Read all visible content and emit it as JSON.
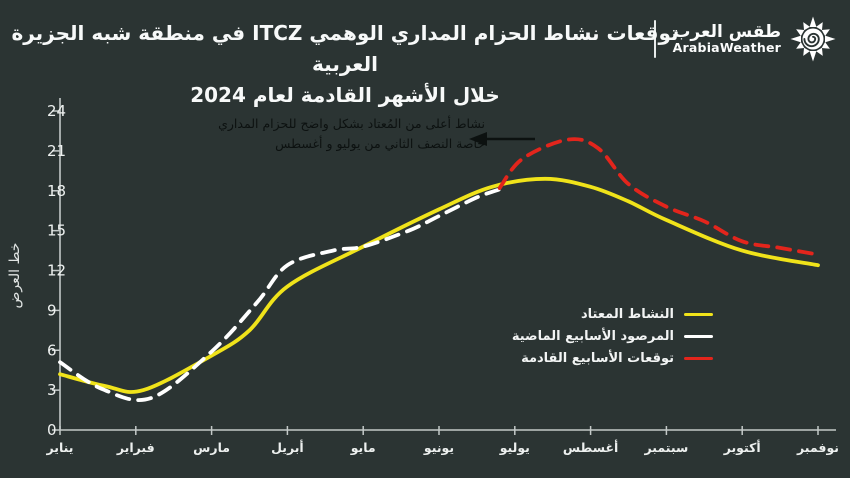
{
  "header": {
    "title_line1": "توقعات نشاط الحزام المداري الوهمي ITCZ في منطقة شبه الجزيرة العربية",
    "title_line2": "خلال الأشهر القادمة لعام 2024",
    "brand": {
      "name_ar": "طقس العرب",
      "name_en": "ArabiaWeather",
      "icon": "sun-spiral-icon"
    }
  },
  "annotation": {
    "line1": "نشاط أعلى من المُعتاد بشكل واضح للحزام المداري",
    "line2": "خاصة النصف الثاني من يوليو و أغسطس",
    "arrow": "black-left-arrow"
  },
  "chart_data": {
    "type": "line",
    "title": "",
    "xlabel": "",
    "ylabel": "خط العرض",
    "ylim": [
      0,
      24
    ],
    "yticks": [
      0,
      3,
      6,
      9,
      12,
      15,
      18,
      21,
      24
    ],
    "categories": [
      "يناير",
      "فبراير",
      "مارس",
      "أبريل",
      "مايو",
      "يونيو",
      "يوليو",
      "أغسطس",
      "سبتمبر",
      "أكتوبر",
      "نوفمبر"
    ],
    "grid": false,
    "legend_position": "middle-right",
    "series": [
      {
        "name": "النشاط المعتاد",
        "color": "#f0e31a",
        "style": "solid",
        "points": [
          [
            0,
            4.2
          ],
          [
            0.6,
            3.3
          ],
          [
            1.1,
            3.0
          ],
          [
            2,
            5.6
          ],
          [
            2.5,
            7.5
          ],
          [
            3,
            10.8
          ],
          [
            4,
            13.8
          ],
          [
            5,
            16.6
          ],
          [
            5.7,
            18.3
          ],
          [
            6.4,
            18.9
          ],
          [
            7,
            18.3
          ],
          [
            7.5,
            17.2
          ],
          [
            8,
            15.8
          ],
          [
            9,
            13.5
          ],
          [
            10,
            12.4
          ]
        ]
      },
      {
        "name": "المرصود الأسابيع الماضية",
        "color": "#ffffff",
        "style": "dashed",
        "points": [
          [
            0,
            5.1
          ],
          [
            0.55,
            3.1
          ],
          [
            1.2,
            2.4
          ],
          [
            2,
            5.9
          ],
          [
            2.6,
            9.6
          ],
          [
            3,
            12.4
          ],
          [
            3.6,
            13.5
          ],
          [
            4,
            13.8
          ],
          [
            4.6,
            15.0
          ],
          [
            5,
            16.1
          ],
          [
            5.5,
            17.5
          ],
          [
            5.85,
            18.2
          ]
        ]
      },
      {
        "name": "توقعات الأسابيع القادمة",
        "color": "#e3251c",
        "style": "dashed",
        "points": [
          [
            5.8,
            18.2
          ],
          [
            6.1,
            20.4
          ],
          [
            6.7,
            21.85
          ],
          [
            7.1,
            21.2
          ],
          [
            7.5,
            18.5
          ],
          [
            8,
            16.8
          ],
          [
            8.5,
            15.7
          ],
          [
            9,
            14.2
          ],
          [
            9.5,
            13.7
          ],
          [
            10,
            13.2
          ]
        ]
      }
    ]
  },
  "colors": {
    "background": "#2b3433",
    "axis": "#c3c9c8",
    "tick_text": "#edf0ef",
    "title_text": "#f7f9f9",
    "annotation_text": "#0c1110",
    "normal_line": "#f0e31a",
    "observed_line": "#ffffff",
    "forecast_line": "#e3251c"
  }
}
